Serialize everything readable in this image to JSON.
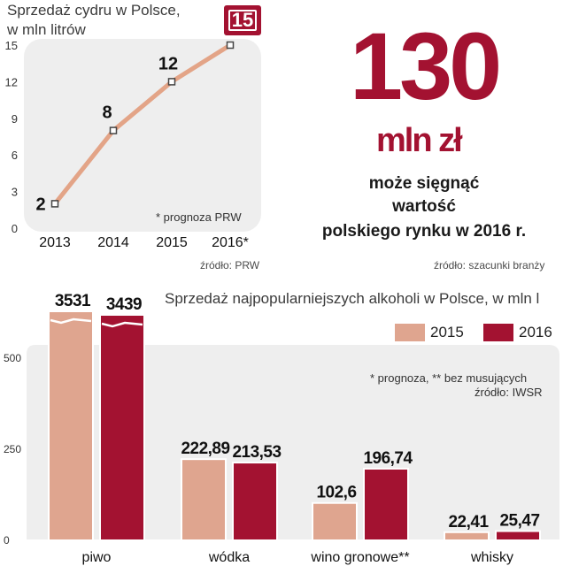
{
  "cider": {
    "title_line1": "Sprzedaż cydru w Polsce,",
    "title_line2": "w mln litrów",
    "note": "* prognoza PRW",
    "source": "źródło: PRW",
    "highlight_label": "15"
  },
  "market": {
    "value": "130",
    "unit": "mln zł",
    "desc_line1": "może sięgnąć",
    "desc_line2": "wartość",
    "desc_line3": "polskiego rynku w 2016 r.",
    "source": "źródło: szacunki branży"
  },
  "alcohol": {
    "title": "Sprzedaż najpopularniejszych alkoholi w Polsce, w mln l",
    "legend_2015": "2015",
    "legend_2016": "2016",
    "note": "* prognoza, ** bez musujących",
    "source": "źródło: IWSR"
  },
  "colors": {
    "line": "#e3a487",
    "bar2015": "#dfa58f",
    "bar2016": "#a31231",
    "panel": "#eeeeee",
    "highlight": "#a31231"
  },
  "chart_data": [
    {
      "type": "line",
      "title": "Sprzedaż cydru w Polsce, w mln litrów",
      "x": [
        "2013",
        "2014",
        "2015",
        "2016*"
      ],
      "values": [
        2,
        8,
        12,
        15
      ],
      "value_labels": [
        "2",
        "8",
        "12",
        "15"
      ],
      "yticks": [
        "0",
        "3",
        "6",
        "9",
        "12",
        "15"
      ],
      "ylim": [
        0,
        15
      ]
    },
    {
      "type": "bar",
      "title": "Sprzedaż najpopularniejszych alkoholi w Polsce, w mln l",
      "categories": [
        "piwo",
        "wódka",
        "wino gronowe**",
        "whisky"
      ],
      "series": [
        {
          "name": "2015",
          "values": [
            3531,
            222.89,
            102.6,
            22.41
          ],
          "labels": [
            "3531",
            "222,89",
            "102,6",
            "22,41"
          ]
        },
        {
          "name": "2016",
          "values": [
            3439,
            213.53,
            196.74,
            25.47
          ],
          "labels": [
            "3439",
            "213,53",
            "196,74",
            "25,47"
          ]
        }
      ],
      "yticks": [
        "0",
        "250",
        "500"
      ],
      "ylim": [
        0,
        500
      ],
      "axis_break": "piwo bars exceed axis (broken bars)"
    }
  ]
}
